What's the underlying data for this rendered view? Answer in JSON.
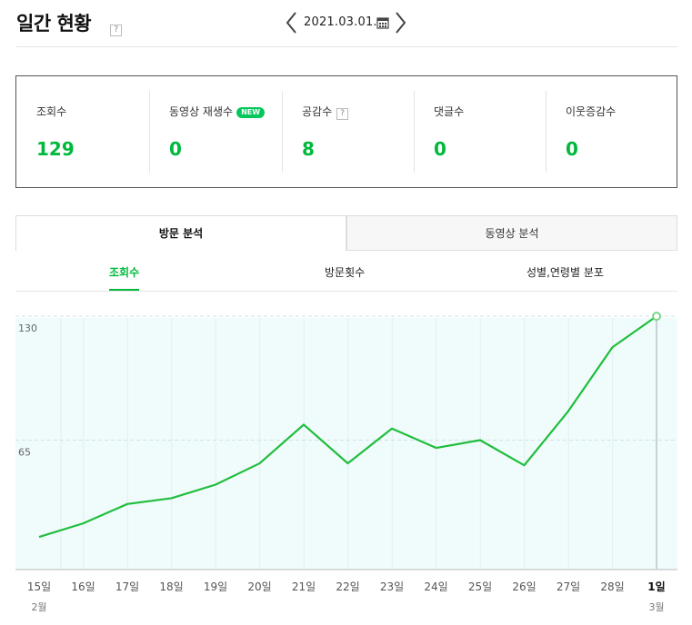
{
  "header": {
    "title": "일간 현황",
    "help_glyph": "?",
    "date": "2021.03.01."
  },
  "stats": [
    {
      "label": "조회수",
      "value": "129"
    },
    {
      "label": "동영상 재생수",
      "badge": "NEW",
      "value": "0"
    },
    {
      "label": "공감수",
      "help": "?",
      "value": "8"
    },
    {
      "label": "댓글수",
      "value": "0"
    },
    {
      "label": "이웃증감수",
      "value": "0"
    }
  ],
  "tabs": [
    "방문 분석",
    "동영상 분석"
  ],
  "subtabs": [
    "조회수",
    "방문횟수",
    "성별,연령별 분포"
  ],
  "colors": {
    "accent": "#00b93c",
    "line": "#1fbe3c",
    "area": "#f0fbfc"
  },
  "chart_data": {
    "type": "line",
    "categories": [
      "15일",
      "16일",
      "17일",
      "18일",
      "19일",
      "20일",
      "21일",
      "22일",
      "23일",
      "24일",
      "25일",
      "26일",
      "27일",
      "28일",
      "1일"
    ],
    "month_labels": [
      {
        "index": 0,
        "label": "2월"
      },
      {
        "index": 14,
        "label": "3월"
      }
    ],
    "series": [
      {
        "values": [
          15,
          22,
          32,
          35,
          42,
          53,
          73,
          53,
          71,
          61,
          65,
          52,
          80,
          113,
          129
        ]
      }
    ],
    "y_ticks": [
      130,
      65
    ],
    "ylim": [
      0,
      130
    ],
    "highlight_index": 14
  }
}
